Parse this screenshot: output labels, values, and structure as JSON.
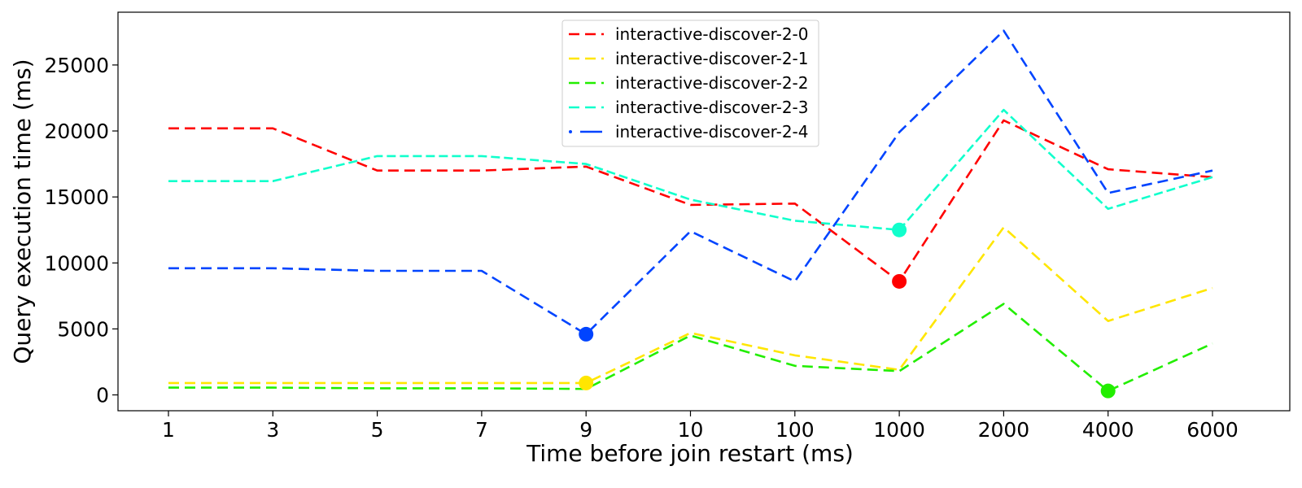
{
  "chart_data": {
    "type": "line",
    "title": "",
    "xlabel": "Time before join restart (ms)",
    "ylabel": "Query execution time (ms)",
    "categories": [
      "1",
      "3",
      "5",
      "7",
      "9",
      "10",
      "100",
      "1000",
      "2000",
      "4000",
      "6000"
    ],
    "ylim": [
      -1200,
      29000
    ],
    "yticks": [
      0,
      5000,
      10000,
      15000,
      20000,
      25000
    ],
    "grid": false,
    "legend_position": "top-center",
    "series": [
      {
        "name": "interactive-discover-2-0",
        "color": "#ff0000",
        "values": [
          20200,
          20200,
          17000,
          17000,
          17300,
          14400,
          14500,
          8600,
          20800,
          17100,
          16500
        ],
        "highlight_index": 7
      },
      {
        "name": "interactive-discover-2-1",
        "color": "#ffe600",
        "values": [
          900,
          900,
          900,
          900,
          900,
          4700,
          3000,
          1900,
          12700,
          5600,
          8100
        ],
        "highlight_index": 4
      },
      {
        "name": "interactive-discover-2-2",
        "color": "#22ee00",
        "values": [
          550,
          550,
          500,
          500,
          450,
          4500,
          2200,
          1800,
          6900,
          300,
          3900
        ],
        "highlight_index": 9
      },
      {
        "name": "interactive-discover-2-3",
        "color": "#11ffcc",
        "values": [
          16200,
          16200,
          18100,
          18100,
          17500,
          14800,
          13200,
          12500,
          21600,
          14100,
          16500
        ],
        "highlight_index": 7
      },
      {
        "name": "interactive-discover-2-4",
        "color": "#0044ff",
        "values": [
          9600,
          9600,
          9400,
          9400,
          4600,
          12400,
          8600,
          19900,
          27600,
          15300,
          17000
        ],
        "highlight_index": 4
      }
    ]
  }
}
